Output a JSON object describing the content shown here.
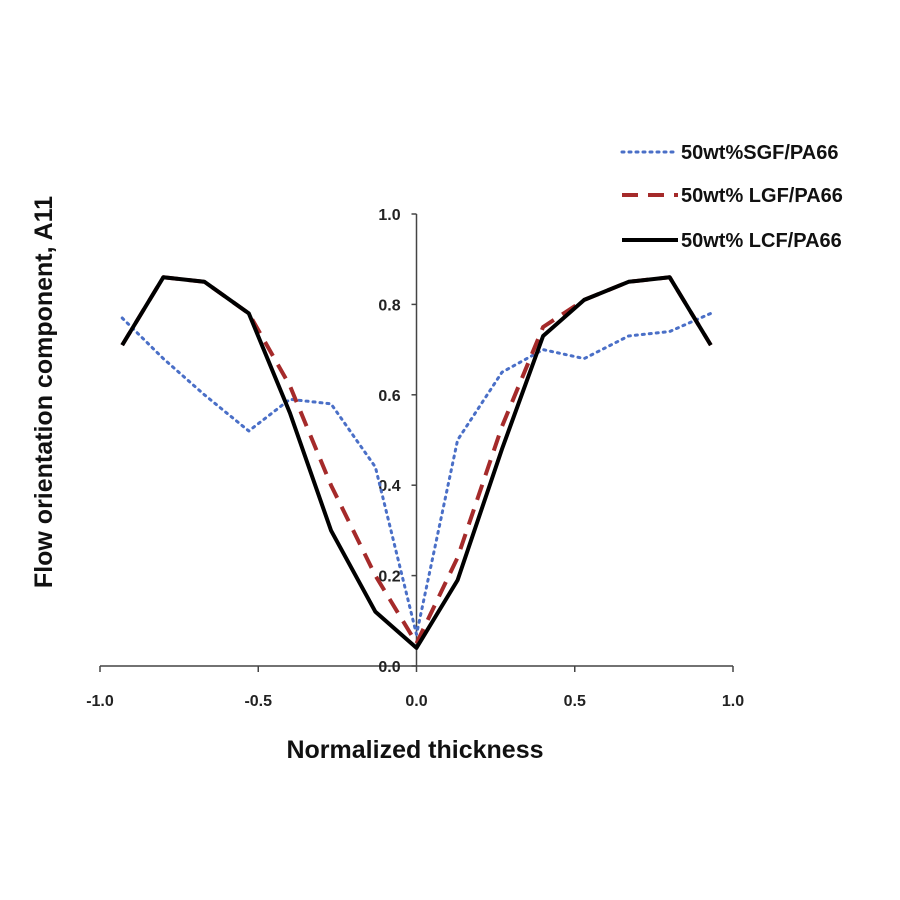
{
  "chart_data": {
    "type": "line",
    "xlabel": "Normalized thickness",
    "ylabel": "Flow orientation component, A11",
    "xlim": [
      -1.0,
      1.0
    ],
    "ylim": [
      0.0,
      1.0
    ],
    "x_ticks": [
      "-1.0",
      "-0.5",
      "0.0",
      "0.5",
      "1.0"
    ],
    "y_ticks": [
      "0.0",
      "0.2",
      "0.4",
      "0.6",
      "0.8",
      "1.0"
    ],
    "grid": false,
    "legend_position": "top-right",
    "series": [
      {
        "name": "50wt%SGF/PA66",
        "color": "#4a6fc7",
        "style": "dotted",
        "x": [
          -0.93,
          -0.8,
          -0.67,
          -0.53,
          -0.4,
          -0.27,
          -0.13,
          0.0,
          0.13,
          0.27,
          0.4,
          0.53,
          0.67,
          0.8,
          0.93
        ],
        "y": [
          0.77,
          0.68,
          0.6,
          0.52,
          0.59,
          0.58,
          0.44,
          0.07,
          0.5,
          0.65,
          0.7,
          0.68,
          0.73,
          0.74,
          0.78
        ]
      },
      {
        "name": "50wt% LGF/PA66",
        "color": "#a52a2a",
        "style": "dashed",
        "x": [
          -0.93,
          -0.8,
          -0.67,
          -0.53,
          -0.4,
          -0.27,
          -0.13,
          0.0,
          0.13,
          0.27,
          0.4,
          0.53,
          0.67,
          0.8,
          0.93
        ],
        "y": [
          0.71,
          0.86,
          0.85,
          0.78,
          0.62,
          0.4,
          0.2,
          0.05,
          0.24,
          0.53,
          0.75,
          0.81,
          0.85,
          0.86,
          0.71
        ]
      },
      {
        "name": "50wt% LCF/PA66",
        "color": "#000000",
        "style": "solid",
        "x": [
          -0.93,
          -0.8,
          -0.67,
          -0.53,
          -0.4,
          -0.27,
          -0.13,
          0.0,
          0.13,
          0.27,
          0.4,
          0.53,
          0.67,
          0.8,
          0.93
        ],
        "y": [
          0.71,
          0.86,
          0.85,
          0.78,
          0.56,
          0.3,
          0.12,
          0.04,
          0.19,
          0.48,
          0.73,
          0.81,
          0.85,
          0.86,
          0.71
        ]
      }
    ]
  }
}
